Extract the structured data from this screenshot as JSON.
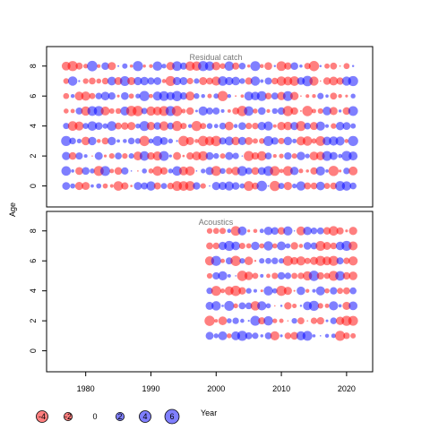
{
  "chart_data": {
    "type": "scatter",
    "subtype": "bubble-residual-plot",
    "ylabel": "Age",
    "xlabel": "Year",
    "x_ticks": [
      "1980",
      "1990",
      "2000",
      "2010",
      "2020"
    ],
    "y_ticks": [
      "0",
      "2",
      "4",
      "6",
      "8"
    ],
    "xlim": [
      1974,
      2024
    ],
    "ylim": [
      -1.4,
      9.3
    ],
    "positive_color": "#0000ff",
    "negative_color": "#ff0000",
    "panels": [
      {
        "title": "Residual catch",
        "year_start": 1977,
        "year_end": 2021,
        "ages": [
          0,
          1,
          2,
          3,
          4,
          5,
          6,
          7,
          8
        ]
      },
      {
        "title": "Acoustics",
        "year_start": 1999,
        "year_end": 2021,
        "ages": [
          1,
          2,
          3,
          4,
          5,
          6,
          7,
          8
        ]
      }
    ],
    "legend": {
      "values": [
        -4,
        -2,
        0,
        2,
        4,
        6
      ],
      "labels": [
        "-4",
        "-2",
        "0",
        "2",
        "4",
        "6"
      ]
    }
  }
}
